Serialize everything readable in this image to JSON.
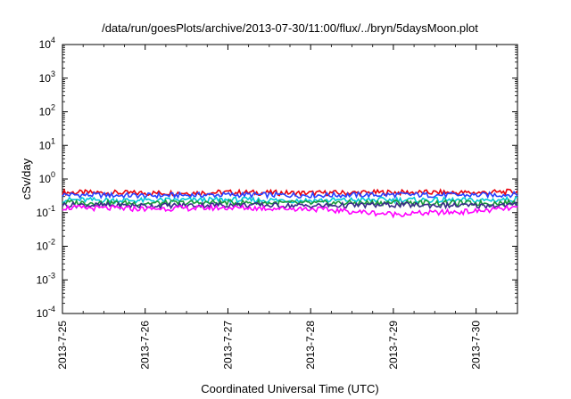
{
  "chart_data": {
    "type": "line",
    "title": "/data/run/goesPlots/archive/2013-07-30/11:00/flux/../bryn/5daysMoon.plot",
    "xlabel": "Coordinated Universal Time (UTC)",
    "ylabel": "cSv/day",
    "yscale": "log",
    "ylim": [
      0.0001,
      10000
    ],
    "y_ticks": [
      {
        "base": "10",
        "exp": "4"
      },
      {
        "base": "10",
        "exp": "3"
      },
      {
        "base": "10",
        "exp": "2"
      },
      {
        "base": "10",
        "exp": "1"
      },
      {
        "base": "10",
        "exp": "0"
      },
      {
        "base": "10",
        "exp": "-1"
      },
      {
        "base": "10",
        "exp": "-2"
      },
      {
        "base": "10",
        "exp": "-3"
      },
      {
        "base": "10",
        "exp": "-4"
      }
    ],
    "xlim": [
      "2013-07-25",
      "2013-07-30 12:00"
    ],
    "x_ticks": [
      "2013-7-25",
      "2013-7-26",
      "2013-7-27",
      "2013-7-28",
      "2013-7-29",
      "2013-7-30"
    ],
    "grid": false,
    "legend": "none",
    "series": [
      {
        "color": "#e8000b",
        "x": [
          "2013-07-25",
          "2013-07-26",
          "2013-07-27",
          "2013-07-28",
          "2013-07-29",
          "2013-07-30",
          "2013-07-30 12:00"
        ],
        "values": [
          0.4,
          0.38,
          0.4,
          0.38,
          0.4,
          0.39,
          0.42
        ]
      },
      {
        "color": "#2a42ff",
        "x": [
          "2013-07-25",
          "2013-07-26",
          "2013-07-27",
          "2013-07-28",
          "2013-07-29",
          "2013-07-30",
          "2013-07-30 12:00"
        ],
        "values": [
          0.34,
          0.32,
          0.34,
          0.33,
          0.34,
          0.33,
          0.35
        ]
      },
      {
        "color": "#00c8d8",
        "x": [
          "2013-07-25",
          "2013-07-26",
          "2013-07-27",
          "2013-07-28",
          "2013-07-29",
          "2013-07-30",
          "2013-07-30 12:00"
        ],
        "values": [
          0.24,
          0.23,
          0.24,
          0.23,
          0.24,
          0.23,
          0.25
        ]
      },
      {
        "color": "#1a9a3a",
        "x": [
          "2013-07-25",
          "2013-07-26",
          "2013-07-27",
          "2013-07-28",
          "2013-07-29",
          "2013-07-30",
          "2013-07-30 12:00"
        ],
        "values": [
          0.2,
          0.19,
          0.2,
          0.19,
          0.2,
          0.19,
          0.2
        ]
      },
      {
        "color": "#3a2a8a",
        "x": [
          "2013-07-25",
          "2013-07-26",
          "2013-07-27",
          "2013-07-28",
          "2013-07-29",
          "2013-07-30",
          "2013-07-30 12:00"
        ],
        "values": [
          0.17,
          0.16,
          0.17,
          0.16,
          0.17,
          0.16,
          0.17
        ]
      },
      {
        "color": "#ff00ff",
        "x": [
          "2013-07-25",
          "2013-07-26",
          "2013-07-27",
          "2013-07-28",
          "2013-07-29",
          "2013-07-30",
          "2013-07-30 12:00"
        ],
        "values": [
          0.14,
          0.13,
          0.14,
          0.13,
          0.09,
          0.11,
          0.14
        ]
      }
    ]
  }
}
